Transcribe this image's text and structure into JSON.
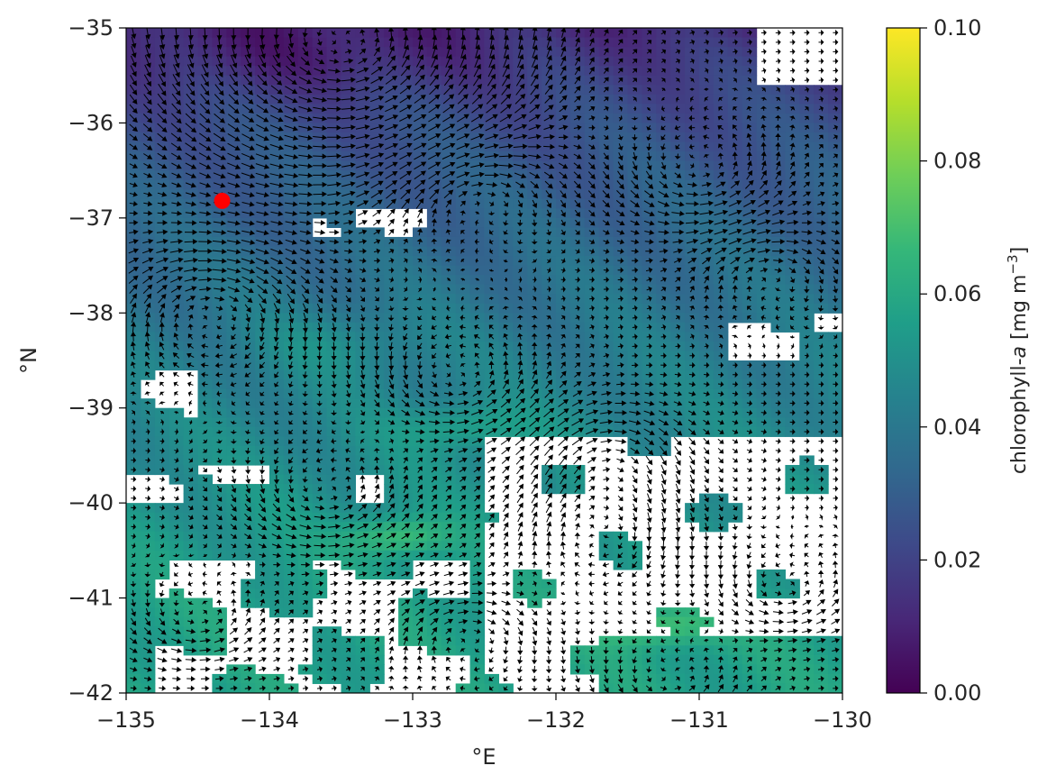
{
  "chart_data": {
    "type": "heatmap",
    "title": "",
    "xlabel": "°E",
    "ylabel": "°N",
    "xlim": [
      -135,
      -130
    ],
    "ylim": [
      -42,
      -35
    ],
    "x_ticks": [
      -135,
      -134,
      -133,
      -132,
      -131,
      -130
    ],
    "x_tick_labels": [
      "−135",
      "−134",
      "−133",
      "−132",
      "−131",
      "−130"
    ],
    "y_ticks": [
      -42,
      -41,
      -40,
      -39,
      -38,
      -37,
      -36,
      -35
    ],
    "y_tick_labels": [
      "−42",
      "−41",
      "−40",
      "−39",
      "−38",
      "−37",
      "−36",
      "−35"
    ],
    "grid": false,
    "colormap": "viridis",
    "colors": {
      "colormap_stops": [
        "#440154",
        "#482878",
        "#3e4989",
        "#31688e",
        "#26828e",
        "#1f9e89",
        "#35b779",
        "#6ece58",
        "#b5de2b",
        "#fde725"
      ],
      "marker": "#ff0000",
      "arrow": "#000000"
    },
    "colorbar": {
      "label_prefix": "chlorophyll-",
      "label_italic": "a",
      "label_suffix": " [mg m",
      "label_superscript": "−3",
      "label_close": "]",
      "vmin": 0.0,
      "vmax": 0.1,
      "ticks": [
        0.0,
        0.02,
        0.04,
        0.06,
        0.08,
        0.1
      ],
      "tick_labels": [
        "0.00",
        "0.02",
        "0.04",
        "0.06",
        "0.08",
        "0.10"
      ]
    },
    "field": {
      "description_of_shown_values": "chlorophyll-a concentration, mostly 0.01–0.06 mg m−3; low (~0.01) along the northern edge near −35, moderate (~0.03–0.045) across the middle, higher (~0.05–0.07) south of −40, peaks ~0.08 near (−133.1, −40.4) and (−131.3, −41.3); blank (missing) regions in the south-east and scattered patches",
      "grid_step_deg": 0.1
    },
    "vectors": {
      "kind": "surface current quiver arrows",
      "grid_step_deg": 0.1
    },
    "marker_point": {
      "lon": -134.33,
      "lat": -36.82
    }
  }
}
